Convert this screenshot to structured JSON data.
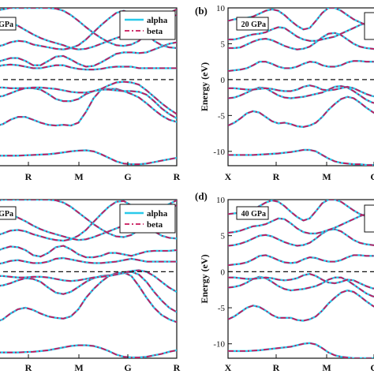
{
  "chart_data": [
    {
      "type": "line",
      "panel_label": "",
      "pressure_label": "GPa",
      "ylabel": "",
      "ylim": [
        -12,
        10
      ],
      "yticks": [],
      "xticks": [
        "R",
        "M",
        "G",
        "R"
      ],
      "legend": {
        "entries": [
          "alpha",
          "beta"
        ],
        "colors": [
          "#29c9ea",
          "#c8175a"
        ],
        "placement": "top-right"
      },
      "fermi_level": 0,
      "grid": false,
      "x": [
        0,
        0.5,
        1,
        1.5,
        2,
        2.5,
        3,
        3.5,
        4,
        4.5,
        5,
        5.5,
        6,
        6.5,
        7,
        7.5,
        8,
        8.5,
        9,
        9.5,
        10,
        10.5,
        11,
        11.5,
        12
      ],
      "bands": [
        [
          -10.6,
          -10.6,
          -10.6,
          -10.6,
          -10.55,
          -10.5,
          -10.45,
          -10.4,
          -10.3,
          -10.15,
          -10.0,
          -9.9,
          -9.85,
          -10.0,
          -10.4,
          -10.9,
          -11.4,
          -11.7,
          -11.8,
          -11.8,
          -11.7,
          -11.5,
          -11.3,
          -11.1,
          -10.9
        ],
        [
          -6.5,
          -6.2,
          -5.6,
          -5.2,
          -5.2,
          -5.6,
          -6.0,
          -6.3,
          -6.4,
          -6.3,
          -6.4,
          -6.0,
          -4.5,
          -2.6,
          -1.4,
          -1.3,
          -1.3,
          -1.6,
          -2.0,
          -2.5,
          -3.3,
          -4.2,
          -5.0,
          -5.6,
          -5.9
        ],
        [
          -2.4,
          -2.3,
          -1.9,
          -1.5,
          -1.2,
          -1.2,
          -1.4,
          -2.0,
          -2.7,
          -3.0,
          -3.0,
          -2.7,
          -2.0,
          -1.6,
          -1.4,
          -1.4,
          -1.5,
          -1.6,
          -1.6,
          -1.7,
          -2.1,
          -3.0,
          -4.0,
          -4.8,
          -5.4
        ],
        [
          -1.1,
          -1.1,
          -1.2,
          -1.2,
          -1.2,
          -1.1,
          -1.1,
          -1.2,
          -1.3,
          -1.5,
          -1.7,
          -1.8,
          -1.8,
          -1.6,
          -1.3,
          -0.8,
          -0.4,
          -0.3,
          -0.4,
          -0.7,
          -1.5,
          -2.4,
          -3.3,
          -4.1,
          -4.8
        ],
        [
          1.8,
          2.0,
          2.1,
          2.0,
          1.8,
          1.6,
          1.6,
          1.8,
          2.0,
          2.0,
          1.7,
          1.5,
          1.4,
          1.4,
          1.5,
          1.7,
          1.8,
          1.8,
          1.8,
          1.6,
          1.6,
          1.6,
          1.6,
          1.6,
          1.6
        ],
        [
          2.4,
          2.7,
          3.0,
          3.0,
          2.6,
          2.0,
          2.0,
          2.6,
          3.2,
          3.3,
          2.8,
          2.2,
          1.8,
          1.9,
          2.4,
          3.0,
          3.6,
          3.8,
          3.8,
          3.7,
          3.8,
          4.2,
          4.6,
          5.0,
          5.2
        ],
        [
          4.6,
          4.8,
          5.2,
          5.4,
          5.3,
          4.9,
          4.7,
          4.5,
          4.3,
          4.2,
          4.4,
          4.8,
          5.6,
          6.6,
          7.6,
          8.5,
          9.3,
          9.6,
          9.2,
          8.0,
          6.4,
          5.4,
          4.8,
          4.5,
          4.4
        ],
        [
          8.4,
          8.3,
          8.0,
          7.5,
          6.9,
          6.3,
          5.8,
          5.4,
          5.1,
          4.8,
          4.4,
          4.2,
          4.3,
          4.6,
          5.0,
          5.4,
          5.8,
          6.1,
          6.3,
          6.6,
          7.0,
          7.6,
          8.2,
          8.7,
          9.0
        ],
        [
          9.6,
          9.8,
          10.0,
          10.0,
          10.0,
          10.0,
          10.0,
          10.0,
          9.9,
          9.6,
          9.0,
          8.2,
          7.3,
          6.5,
          5.8,
          5.2,
          4.8,
          4.7,
          4.9,
          5.4,
          6.4,
          7.6,
          8.6,
          9.3,
          9.8
        ]
      ]
    },
    {
      "type": "line",
      "panel_label": "(b)",
      "pressure_label": "20 GPa",
      "ylabel": "Energy (eV)",
      "ylim": [
        -12,
        10
      ],
      "yticks": [
        -10,
        -5,
        0,
        5,
        10
      ],
      "xticks": [
        "X",
        "R",
        "M",
        "G"
      ],
      "legend": {
        "entries": [],
        "colors": [
          "#29c9ea",
          "#c8175a"
        ],
        "placement": "top-right"
      },
      "fermi_level": 0,
      "grid": false,
      "x": [
        0,
        0.5,
        1,
        1.5,
        2,
        2.5,
        3,
        3.5,
        4,
        4.5,
        5,
        5.5,
        6,
        6.5,
        7,
        7.5,
        8,
        8.5,
        9,
        9.5,
        10,
        10.5,
        11,
        11.5,
        12
      ],
      "bands": [
        [
          -10.5,
          -10.5,
          -10.5,
          -10.5,
          -10.5,
          -10.45,
          -10.4,
          -10.35,
          -10.3,
          -10.2,
          -10.1,
          -9.95,
          -9.8,
          -9.8,
          -10.0,
          -10.5,
          -11.0,
          -11.4,
          -11.6,
          -11.7,
          -11.8,
          -11.8,
          -11.9,
          -11.9,
          -12.0
        ],
        [
          -6.4,
          -6.0,
          -5.4,
          -4.7,
          -4.4,
          -4.6,
          -5.2,
          -5.8,
          -6.1,
          -6.0,
          -6.2,
          -6.5,
          -6.6,
          -6.4,
          -6.0,
          -5.2,
          -4.2,
          -3.4,
          -2.7,
          -2.4,
          -2.6,
          -3.2,
          -3.9,
          -4.5,
          -5.0
        ],
        [
          -2.6,
          -2.5,
          -2.2,
          -1.8,
          -1.4,
          -1.1,
          -1.2,
          -1.7,
          -2.2,
          -2.5,
          -2.6,
          -2.5,
          -2.4,
          -2.2,
          -2.0,
          -1.8,
          -1.4,
          -1.0,
          -0.9,
          -1.1,
          -1.6,
          -2.2,
          -2.8,
          -3.2,
          -3.4
        ],
        [
          -1.2,
          -1.2,
          -1.3,
          -1.4,
          -1.4,
          -1.3,
          -1.2,
          -1.3,
          -1.5,
          -1.6,
          -1.6,
          -1.4,
          -1.0,
          -0.8,
          -1.0,
          -1.4,
          -1.5,
          -1.4,
          -1.2,
          -1.0,
          -1.2,
          -1.6,
          -2.0,
          -2.3,
          -2.4
        ],
        [
          1.2,
          1.3,
          1.4,
          1.6,
          2.0,
          2.5,
          2.5,
          2.2,
          1.8,
          1.6,
          1.6,
          1.8,
          2.2,
          2.5,
          2.4,
          2.0,
          1.8,
          1.8,
          2.0,
          2.4,
          2.6,
          2.6,
          2.5,
          2.5,
          2.5
        ],
        [
          4.4,
          4.4,
          4.5,
          4.9,
          5.3,
          5.6,
          5.7,
          5.5,
          5.1,
          4.7,
          4.4,
          4.2,
          4.3,
          4.6,
          5.2,
          5.9,
          6.4,
          6.5,
          6.2,
          5.6,
          5.0,
          4.6,
          4.4,
          4.3,
          4.2
        ],
        [
          5.6,
          5.6,
          5.8,
          6.1,
          6.3,
          6.4,
          6.6,
          7.0,
          7.3,
          7.2,
          6.6,
          6.0,
          5.6,
          5.4,
          5.4,
          5.6,
          5.8,
          6.0,
          6.4,
          6.8,
          7.2,
          7.6,
          7.9,
          8.1,
          8.2
        ],
        [
          8.2,
          8.4,
          8.5,
          8.6,
          8.8,
          9.2,
          9.6,
          9.8,
          9.6,
          9.0,
          8.2,
          7.5,
          7.0,
          7.2,
          8.2,
          9.3,
          10.0,
          10.0,
          9.6,
          9.0,
          8.4,
          8.0,
          7.6,
          7.4,
          7.2
        ]
      ]
    },
    {
      "type": "line",
      "panel_label": "",
      "pressure_label": "GPa",
      "ylabel": "",
      "ylim": [
        -12,
        10
      ],
      "yticks": [],
      "xticks": [
        "R",
        "M",
        "G",
        "R"
      ],
      "legend": {
        "entries": [
          "alpha",
          "beta"
        ],
        "colors": [
          "#29c9ea",
          "#c8175a"
        ],
        "placement": "top-right"
      },
      "fermi_level": 0,
      "grid": false,
      "x": [
        0,
        0.5,
        1,
        1.5,
        2,
        2.5,
        3,
        3.5,
        4,
        4.5,
        5,
        5.5,
        6,
        6.5,
        7,
        7.5,
        8,
        8.5,
        9,
        9.5,
        10,
        10.5,
        11,
        11.5,
        12
      ],
      "bands": [
        [
          -11.2,
          -11.2,
          -11.2,
          -11.2,
          -11.15,
          -11.1,
          -11.0,
          -10.9,
          -10.7,
          -10.5,
          -10.3,
          -10.2,
          -10.2,
          -10.3,
          -10.6,
          -11.0,
          -11.5,
          -11.8,
          -11.9,
          -11.9,
          -11.8,
          -11.6,
          -11.4,
          -11.1,
          -10.9
        ],
        [
          -7.0,
          -6.6,
          -5.8,
          -5.2,
          -5.0,
          -5.3,
          -5.8,
          -6.2,
          -6.4,
          -6.5,
          -6.2,
          -5.2,
          -3.6,
          -2.4,
          -1.4,
          -0.6,
          -0.2,
          -0.1,
          -0.6,
          -2.0,
          -3.6,
          -5.0,
          -6.0,
          -6.6,
          -7.0
        ],
        [
          -2.0,
          -1.9,
          -1.6,
          -1.2,
          -0.9,
          -1.0,
          -1.4,
          -2.2,
          -2.9,
          -3.1,
          -2.8,
          -2.1,
          -1.4,
          -0.9,
          -0.6,
          -0.5,
          -0.4,
          -0.2,
          0.0,
          -0.4,
          -1.4,
          -2.8,
          -4.0,
          -5.0,
          -5.6
        ],
        [
          -0.6,
          -0.6,
          -0.7,
          -0.8,
          -0.8,
          -0.7,
          -0.7,
          -0.8,
          -1.0,
          -1.2,
          -1.3,
          -1.2,
          -1.0,
          -0.8,
          -0.7,
          -0.6,
          -0.4,
          -0.1,
          0.1,
          0.2,
          0.0,
          -0.6,
          -1.4,
          -2.2,
          -2.8
        ],
        [
          1.0,
          1.2,
          1.5,
          1.6,
          1.4,
          1.2,
          1.2,
          1.4,
          1.8,
          1.9,
          1.7,
          1.5,
          1.3,
          1.2,
          1.2,
          1.3,
          1.4,
          1.6,
          1.8,
          1.6,
          1.4,
          1.4,
          1.4,
          1.4,
          1.4
        ],
        [
          2.8,
          3.2,
          3.5,
          3.4,
          3.0,
          2.3,
          2.1,
          2.6,
          3.4,
          3.6,
          3.1,
          2.4,
          2.0,
          2.0,
          2.2,
          2.6,
          2.6,
          2.4,
          2.2,
          2.5,
          2.8,
          2.9,
          2.9,
          2.9,
          3.0
        ],
        [
          5.0,
          5.3,
          5.7,
          5.8,
          5.6,
          5.2,
          4.9,
          4.6,
          4.4,
          4.3,
          4.5,
          5.0,
          5.8,
          6.9,
          8.0,
          9.0,
          9.7,
          9.8,
          9.2,
          7.8,
          6.4,
          5.6,
          5.0,
          4.7,
          4.6
        ],
        [
          8.6,
          8.4,
          8.0,
          7.5,
          7.0,
          6.4,
          5.9,
          5.5,
          5.2,
          4.9,
          4.6,
          4.4,
          4.5,
          4.8,
          5.2,
          5.6,
          6.0,
          6.4,
          6.7,
          7.0,
          7.4,
          7.9,
          8.4,
          8.8,
          9.2
        ],
        [
          9.8,
          10.0,
          10.0,
          10.0,
          10.0,
          10.0,
          10.0,
          10.0,
          9.9,
          9.6,
          9.0,
          8.2,
          7.4,
          6.6,
          5.9,
          5.3,
          4.9,
          4.8,
          5.1,
          5.8,
          6.8,
          7.9,
          8.8,
          9.4,
          9.9
        ]
      ]
    },
    {
      "type": "line",
      "panel_label": "(d)",
      "pressure_label": "40 GPa",
      "ylabel": "Energy (eV)",
      "ylim": [
        -12,
        10
      ],
      "yticks": [
        -10,
        -5,
        0,
        5,
        10
      ],
      "xticks": [
        "X",
        "R",
        "M",
        "G"
      ],
      "legend": {
        "entries": [],
        "colors": [
          "#29c9ea",
          "#c8175a"
        ],
        "placement": "top-right"
      },
      "fermi_level": 0,
      "grid": false,
      "x": [
        0,
        0.5,
        1,
        1.5,
        2,
        2.5,
        3,
        3.5,
        4,
        4.5,
        5,
        5.5,
        6,
        6.5,
        7,
        7.5,
        8,
        8.5,
        9,
        9.5,
        10,
        10.5,
        11,
        11.5,
        12
      ],
      "bands": [
        [
          -11.0,
          -11.0,
          -11.0,
          -11.0,
          -10.95,
          -10.9,
          -10.8,
          -10.7,
          -10.6,
          -10.5,
          -10.4,
          -10.2,
          -10.0,
          -9.9,
          -10.1,
          -10.6,
          -11.2,
          -11.6,
          -11.8,
          -11.9,
          -12.0,
          -12.0,
          -12.0,
          -12.0,
          -12.0
        ],
        [
          -6.6,
          -6.2,
          -5.6,
          -5.0,
          -4.7,
          -4.9,
          -5.4,
          -6.0,
          -6.4,
          -6.4,
          -6.4,
          -6.7,
          -6.8,
          -6.6,
          -6.2,
          -5.4,
          -4.4,
          -3.6,
          -2.9,
          -2.6,
          -2.8,
          -3.4,
          -4.1,
          -4.7,
          -5.2
        ],
        [
          -2.2,
          -2.1,
          -1.9,
          -1.5,
          -1.0,
          -0.7,
          -0.9,
          -1.4,
          -2.0,
          -2.4,
          -2.6,
          -2.5,
          -2.4,
          -2.2,
          -2.0,
          -1.6,
          -1.1,
          -0.8,
          -0.8,
          -1.2,
          -1.8,
          -2.4,
          -3.0,
          -3.4,
          -3.6
        ],
        [
          -0.8,
          -0.8,
          -0.9,
          -1.0,
          -1.0,
          -0.9,
          -0.8,
          -0.9,
          -1.1,
          -1.2,
          -1.1,
          -0.9,
          -0.5,
          -0.3,
          -0.6,
          -1.1,
          -1.5,
          -1.6,
          -1.4,
          -1.1,
          -1.2,
          -1.6,
          -2.0,
          -2.3,
          -2.4
        ],
        [
          0.9,
          1.0,
          1.1,
          1.3,
          1.7,
          2.2,
          2.3,
          2.0,
          1.6,
          1.3,
          1.2,
          1.3,
          1.7,
          2.0,
          1.9,
          1.6,
          1.4,
          1.4,
          1.6,
          2.0,
          2.3,
          2.3,
          2.2,
          2.2,
          2.2
        ],
        [
          3.6,
          3.7,
          3.9,
          4.2,
          4.6,
          5.0,
          5.1,
          4.9,
          4.5,
          4.1,
          3.8,
          3.6,
          3.7,
          4.0,
          4.6,
          5.3,
          5.8,
          5.9,
          5.6,
          5.0,
          4.4,
          4.0,
          3.8,
          3.7,
          3.6
        ],
        [
          5.4,
          5.5,
          5.7,
          6.0,
          6.3,
          6.4,
          6.6,
          7.0,
          7.4,
          7.3,
          6.7,
          6.0,
          5.5,
          5.3,
          5.3,
          5.5,
          5.8,
          6.1,
          6.5,
          6.9,
          7.3,
          7.7,
          8.0,
          8.2,
          8.3
        ],
        [
          8.0,
          8.1,
          8.2,
          8.3,
          8.6,
          9.1,
          9.6,
          9.9,
          9.7,
          9.1,
          8.3,
          7.6,
          7.1,
          7.4,
          8.4,
          9.5,
          10.0,
          10.0,
          9.7,
          9.1,
          8.5,
          8.0,
          7.7,
          7.5,
          7.3
        ]
      ]
    }
  ]
}
